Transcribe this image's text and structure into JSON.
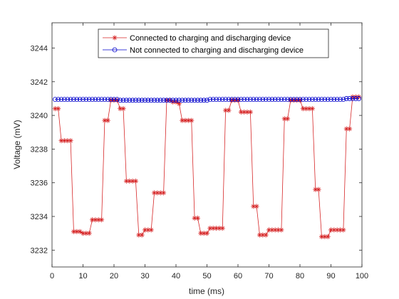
{
  "chart_data": {
    "type": "line",
    "xlabel": "time (ms)",
    "ylabel": "Voltage (mV)",
    "xlim": [
      0,
      100
    ],
    "ylim": [
      3231,
      3245.5
    ],
    "xticks": [
      0,
      10,
      20,
      30,
      40,
      50,
      60,
      70,
      80,
      90,
      100
    ],
    "yticks": [
      3232,
      3234,
      3236,
      3238,
      3240,
      3242,
      3244
    ],
    "grid": false,
    "legend_position": "top-center",
    "series": [
      {
        "name": "Connected to charging and discharging device",
        "color": "#d62728",
        "marker": "asterisk",
        "x": [
          1,
          2,
          3,
          4,
          5,
          6,
          7,
          8,
          9,
          10,
          11,
          12,
          13,
          14,
          15,
          16,
          17,
          18,
          19,
          20,
          21,
          22,
          23,
          24,
          25,
          26,
          27,
          28,
          29,
          30,
          31,
          32,
          33,
          34,
          35,
          36,
          37,
          38,
          39,
          40,
          41,
          42,
          43,
          44,
          45,
          46,
          47,
          48,
          49,
          50,
          51,
          52,
          53,
          54,
          55,
          56,
          57,
          58,
          59,
          60,
          61,
          62,
          63,
          64,
          65,
          66,
          67,
          68,
          69,
          70,
          71,
          72,
          73,
          74,
          75,
          76,
          77,
          78,
          79,
          80,
          81,
          82,
          83,
          84,
          85,
          86,
          87,
          88,
          89,
          90,
          91,
          92,
          93,
          94,
          95,
          96,
          97,
          98,
          99
        ],
        "values": [
          3240.4,
          3240.4,
          3238.5,
          3238.5,
          3238.5,
          3238.5,
          3233.1,
          3233.1,
          3233.1,
          3233.0,
          3233.0,
          3233.0,
          3233.8,
          3233.8,
          3233.8,
          3233.8,
          3239.7,
          3239.7,
          3240.9,
          3240.9,
          3240.9,
          3240.4,
          3240.4,
          3236.1,
          3236.1,
          3236.1,
          3236.1,
          3232.9,
          3232.9,
          3233.2,
          3233.2,
          3233.2,
          3235.4,
          3235.4,
          3235.4,
          3235.4,
          3240.9,
          3240.9,
          3240.8,
          3240.8,
          3240.7,
          3239.7,
          3239.7,
          3239.7,
          3239.7,
          3233.9,
          3233.9,
          3233.0,
          3233.0,
          3233.0,
          3233.3,
          3233.3,
          3233.3,
          3233.3,
          3233.3,
          3240.3,
          3240.3,
          3240.9,
          3240.9,
          3240.9,
          3240.2,
          3240.2,
          3240.2,
          3240.2,
          3234.6,
          3234.6,
          3232.9,
          3232.9,
          3232.9,
          3233.2,
          3233.2,
          3233.2,
          3233.2,
          3233.2,
          3239.8,
          3239.8,
          3240.9,
          3240.9,
          3240.9,
          3240.9,
          3240.4,
          3240.4,
          3240.4,
          3240.4,
          3235.6,
          3235.6,
          3232.8,
          3232.8,
          3232.8,
          3233.2,
          3233.2,
          3233.2,
          3233.2,
          3233.2,
          3239.2,
          3239.2,
          3241.1,
          3241.1,
          3241.1
        ]
      },
      {
        "name": "Not connected to charging and discharging device",
        "color": "#0000cc",
        "marker": "circle",
        "x": [
          1,
          2,
          3,
          4,
          5,
          6,
          7,
          8,
          9,
          10,
          11,
          12,
          13,
          14,
          15,
          16,
          17,
          18,
          19,
          20,
          21,
          22,
          23,
          24,
          25,
          26,
          27,
          28,
          29,
          30,
          31,
          32,
          33,
          34,
          35,
          36,
          37,
          38,
          39,
          40,
          41,
          42,
          43,
          44,
          45,
          46,
          47,
          48,
          49,
          50,
          51,
          52,
          53,
          54,
          55,
          56,
          57,
          58,
          59,
          60,
          61,
          62,
          63,
          64,
          65,
          66,
          67,
          68,
          69,
          70,
          71,
          72,
          73,
          74,
          75,
          76,
          77,
          78,
          79,
          80,
          81,
          82,
          83,
          84,
          85,
          86,
          87,
          88,
          89,
          90,
          91,
          92,
          93,
          94,
          95,
          96,
          97,
          98,
          99
        ],
        "values": [
          3240.95,
          3240.95,
          3240.95,
          3240.95,
          3240.95,
          3240.95,
          3240.95,
          3240.95,
          3240.95,
          3240.95,
          3240.95,
          3240.95,
          3240.95,
          3240.95,
          3240.95,
          3240.95,
          3240.95,
          3240.95,
          3240.95,
          3240.95,
          3240.95,
          3240.9,
          3240.9,
          3240.9,
          3240.9,
          3240.9,
          3240.9,
          3240.9,
          3240.9,
          3240.9,
          3240.9,
          3240.9,
          3240.9,
          3240.9,
          3240.9,
          3240.9,
          3240.9,
          3240.9,
          3240.9,
          3240.9,
          3240.9,
          3240.9,
          3240.9,
          3240.9,
          3240.9,
          3240.9,
          3240.9,
          3240.9,
          3240.9,
          3240.9,
          3240.95,
          3240.95,
          3240.95,
          3240.95,
          3240.95,
          3240.95,
          3240.95,
          3240.95,
          3240.95,
          3240.95,
          3240.95,
          3240.95,
          3240.95,
          3240.95,
          3240.95,
          3240.95,
          3240.95,
          3240.95,
          3240.95,
          3240.95,
          3240.95,
          3240.95,
          3240.95,
          3240.95,
          3240.95,
          3240.95,
          3240.95,
          3240.95,
          3240.95,
          3240.95,
          3240.95,
          3240.95,
          3240.95,
          3240.95,
          3240.95,
          3240.95,
          3240.95,
          3240.95,
          3240.95,
          3240.95,
          3240.95,
          3240.95,
          3240.95,
          3240.95,
          3241.0,
          3241.0,
          3241.0,
          3241.0,
          3241.0
        ]
      }
    ]
  }
}
